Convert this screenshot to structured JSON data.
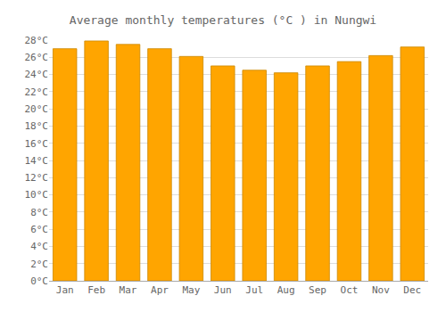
{
  "chart_data": {
    "type": "bar",
    "title": "Average monthly temperatures (°C ) in Nungwi",
    "categories": [
      "Jan",
      "Feb",
      "Mar",
      "Apr",
      "May",
      "Jun",
      "Jul",
      "Aug",
      "Sep",
      "Oct",
      "Nov",
      "Dec"
    ],
    "values": [
      27.0,
      27.9,
      27.5,
      27.0,
      26.1,
      25.0,
      24.5,
      24.2,
      25.0,
      25.5,
      26.2,
      27.2
    ],
    "color": "#FFA500",
    "ylim": [
      0,
      28
    ],
    "yticks": [
      {
        "value": 0,
        "label": "0°C"
      },
      {
        "value": 2,
        "label": "2°C"
      },
      {
        "value": 4,
        "label": "4°C"
      },
      {
        "value": 6,
        "label": "6°C"
      },
      {
        "value": 8,
        "label": "8°C"
      },
      {
        "value": 10,
        "label": "10°C"
      },
      {
        "value": 12,
        "label": "12°C"
      },
      {
        "value": 14,
        "label": "14°C"
      },
      {
        "value": 16,
        "label": "16°C"
      },
      {
        "value": 18,
        "label": "18°C"
      },
      {
        "value": 20,
        "label": "20°C"
      },
      {
        "value": 22,
        "label": "22°C"
      },
      {
        "value": 24,
        "label": "24°C"
      },
      {
        "value": 26,
        "label": "26°C"
      },
      {
        "value": 28,
        "label": "28°C"
      }
    ],
    "grid": true
  }
}
